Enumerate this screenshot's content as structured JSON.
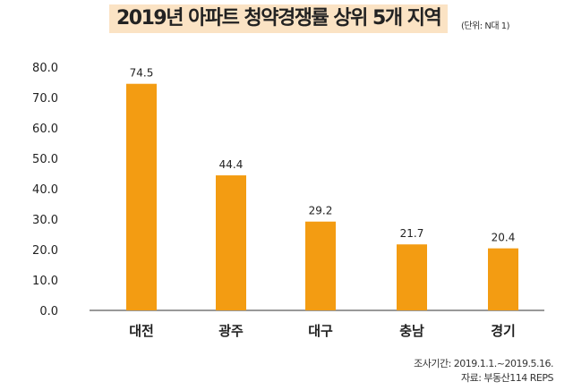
{
  "chart_data": {
    "type": "bar",
    "title": "2019년 아파트 청약경쟁률 상위 5개 지역",
    "unit": "(단위: N대 1)",
    "categories": [
      "대전",
      "광주",
      "대구",
      "충남",
      "경기"
    ],
    "values": [
      74.5,
      44.4,
      29.2,
      21.7,
      20.4
    ],
    "value_labels": [
      "74.5",
      "44.4",
      "29.2",
      "21.7",
      "20.4"
    ],
    "ylim": [
      0,
      80
    ],
    "yticks": [
      "0.0",
      "10.0",
      "20.0",
      "30.0",
      "40.0",
      "50.0",
      "60.0",
      "70.0",
      "80.0"
    ],
    "grid": false,
    "bar_color": "#f39c12"
  },
  "notes": {
    "period": "조사기간: 2019.1.1.~2019.5.16.",
    "source": "자료: 부동산114 REPS"
  }
}
